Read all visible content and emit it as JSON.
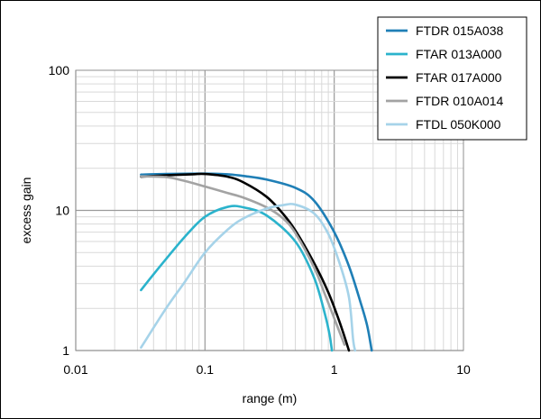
{
  "chart_data": {
    "type": "line",
    "xlabel": "range (m)",
    "ylabel": "excess gain",
    "x_scale": "log",
    "y_scale": "log",
    "xlim": [
      0.01,
      10
    ],
    "ylim": [
      1,
      100
    ],
    "x_ticks": [
      0.01,
      0.1,
      1,
      10
    ],
    "x_tick_labels": [
      "0.01",
      "0.1",
      "1",
      "10"
    ],
    "y_ticks": [
      1,
      10,
      100
    ],
    "y_tick_labels": [
      "1",
      "10",
      "100"
    ],
    "grid": true,
    "legend_position": "top-right",
    "series": [
      {
        "name": "FTDR 015A038",
        "color": "#1f7fb6",
        "points": [
          [
            0.032,
            18.0
          ],
          [
            0.05,
            18.2
          ],
          [
            0.1,
            18.3
          ],
          [
            0.15,
            18.1
          ],
          [
            0.2,
            17.6
          ],
          [
            0.3,
            16.6
          ],
          [
            0.5,
            14.5
          ],
          [
            0.7,
            11.7
          ],
          [
            1.0,
            7.0
          ],
          [
            1.3,
            4.0
          ],
          [
            1.6,
            2.2
          ],
          [
            1.8,
            1.5
          ],
          [
            1.95,
            1.0
          ]
        ]
      },
      {
        "name": "FTAR 013A000",
        "color": "#2bb3cc",
        "points": [
          [
            0.032,
            2.7
          ],
          [
            0.04,
            3.5
          ],
          [
            0.05,
            4.5
          ],
          [
            0.07,
            6.5
          ],
          [
            0.1,
            9.0
          ],
          [
            0.15,
            10.6
          ],
          [
            0.2,
            10.5
          ],
          [
            0.3,
            9.2
          ],
          [
            0.5,
            6.0
          ],
          [
            0.7,
            3.3
          ],
          [
            0.85,
            1.8
          ],
          [
            0.92,
            1.3
          ],
          [
            0.96,
            1.0
          ]
        ]
      },
      {
        "name": "FTAR 017A000",
        "color": "#000000",
        "points": [
          [
            0.032,
            17.4
          ],
          [
            0.05,
            17.8
          ],
          [
            0.08,
            18.1
          ],
          [
            0.1,
            18.2
          ],
          [
            0.15,
            17.4
          ],
          [
            0.2,
            15.8
          ],
          [
            0.3,
            12.5
          ],
          [
            0.4,
            9.5
          ],
          [
            0.5,
            7.2
          ],
          [
            0.7,
            4.2
          ],
          [
            0.9,
            2.6
          ],
          [
            1.1,
            1.6
          ],
          [
            1.3,
            1.0
          ]
        ]
      },
      {
        "name": "FTDR 010A014",
        "color": "#a3a3a3",
        "points": [
          [
            0.032,
            17.5
          ],
          [
            0.05,
            17.3
          ],
          [
            0.07,
            16.2
          ],
          [
            0.1,
            14.8
          ],
          [
            0.15,
            13.3
          ],
          [
            0.2,
            12.3
          ],
          [
            0.3,
            10.5
          ],
          [
            0.4,
            8.8
          ],
          [
            0.5,
            6.9
          ],
          [
            0.7,
            3.9
          ],
          [
            0.85,
            2.5
          ],
          [
            1.0,
            1.7
          ],
          [
            1.2,
            1.1
          ]
        ]
      },
      {
        "name": "FTDL 050K000",
        "color": "#a6d3e9",
        "points": [
          [
            0.032,
            1.05
          ],
          [
            0.05,
            2.0
          ],
          [
            0.07,
            3.1
          ],
          [
            0.1,
            5.0
          ],
          [
            0.15,
            7.3
          ],
          [
            0.2,
            8.8
          ],
          [
            0.3,
            10.3
          ],
          [
            0.4,
            10.9
          ],
          [
            0.5,
            11.0
          ],
          [
            0.7,
            9.5
          ],
          [
            0.9,
            6.8
          ],
          [
            1.1,
            4.2
          ],
          [
            1.3,
            2.4
          ],
          [
            1.4,
            1.2
          ],
          [
            1.45,
            1.0
          ]
        ]
      }
    ]
  }
}
